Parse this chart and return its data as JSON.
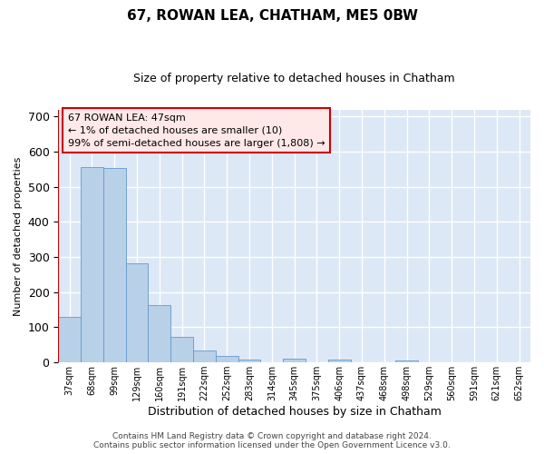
{
  "title": "67, ROWAN LEA, CHATHAM, ME5 0BW",
  "subtitle": "Size of property relative to detached houses in Chatham",
  "xlabel": "Distribution of detached houses by size in Chatham",
  "ylabel": "Number of detached properties",
  "footer_line1": "Contains HM Land Registry data © Crown copyright and database right 2024.",
  "footer_line2": "Contains public sector information licensed under the Open Government Licence v3.0.",
  "annotation_line1": "67 ROWAN LEA: 47sqm",
  "annotation_line2": "← 1% of detached houses are smaller (10)",
  "annotation_line3": "99% of semi-detached houses are larger (1,808) →",
  "bar_labels": [
    "37sqm",
    "68sqm",
    "99sqm",
    "129sqm",
    "160sqm",
    "191sqm",
    "222sqm",
    "252sqm",
    "283sqm",
    "314sqm",
    "345sqm",
    "375sqm",
    "406sqm",
    "437sqm",
    "468sqm",
    "498sqm",
    "529sqm",
    "560sqm",
    "591sqm",
    "621sqm",
    "652sqm"
  ],
  "bar_values": [
    130,
    557,
    553,
    282,
    164,
    72,
    35,
    18,
    9,
    0,
    10,
    0,
    7,
    0,
    0,
    5,
    0,
    0,
    0,
    0,
    0
  ],
  "bar_color": "#b8d0e8",
  "bar_edge_color": "#6699cc",
  "marker_color": "#cc0000",
  "ylim": [
    0,
    720
  ],
  "yticks": [
    0,
    100,
    200,
    300,
    400,
    500,
    600,
    700
  ],
  "bg_color": "#dce8f5",
  "grid_color": "#ffffff",
  "fig_bg_color": "#ffffff",
  "annotation_box_color": "#ffe8e8",
  "annotation_box_edge": "#cc0000",
  "title_fontsize": 11,
  "subtitle_fontsize": 9,
  "ylabel_fontsize": 8,
  "xlabel_fontsize": 9,
  "footer_fontsize": 6.5
}
